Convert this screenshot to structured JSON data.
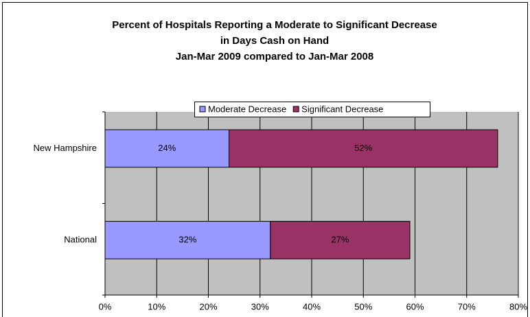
{
  "chart_data": {
    "type": "stacked-bar-horizontal",
    "title": [
      "Percent of Hospitals Reporting a Moderate to Significant Decrease",
      "in Days Cash on Hand",
      "Jan-Mar 2009 compared to Jan-Mar 2008"
    ],
    "categories": [
      "New Hampshire",
      "National"
    ],
    "series": [
      {
        "name": "Moderate Decrease",
        "color": "#9999ff",
        "values": [
          24,
          32
        ],
        "value_labels": [
          "24%",
          "32%"
        ]
      },
      {
        "name": "Significant Decrease",
        "color": "#993366",
        "values": [
          52,
          27
        ],
        "value_labels": [
          "52%",
          "27%"
        ]
      }
    ],
    "xlim": [
      0,
      80
    ],
    "xticks": [
      {
        "value": 0,
        "label": "0%"
      },
      {
        "value": 10,
        "label": "10%"
      },
      {
        "value": 20,
        "label": "20%"
      },
      {
        "value": 30,
        "label": "30%"
      },
      {
        "value": 40,
        "label": "40%"
      },
      {
        "value": 50,
        "label": "50%"
      },
      {
        "value": 60,
        "label": "60%"
      },
      {
        "value": 70,
        "label": "70%"
      },
      {
        "value": 80,
        "label": "80%"
      }
    ],
    "grid": true,
    "legend": "top"
  }
}
